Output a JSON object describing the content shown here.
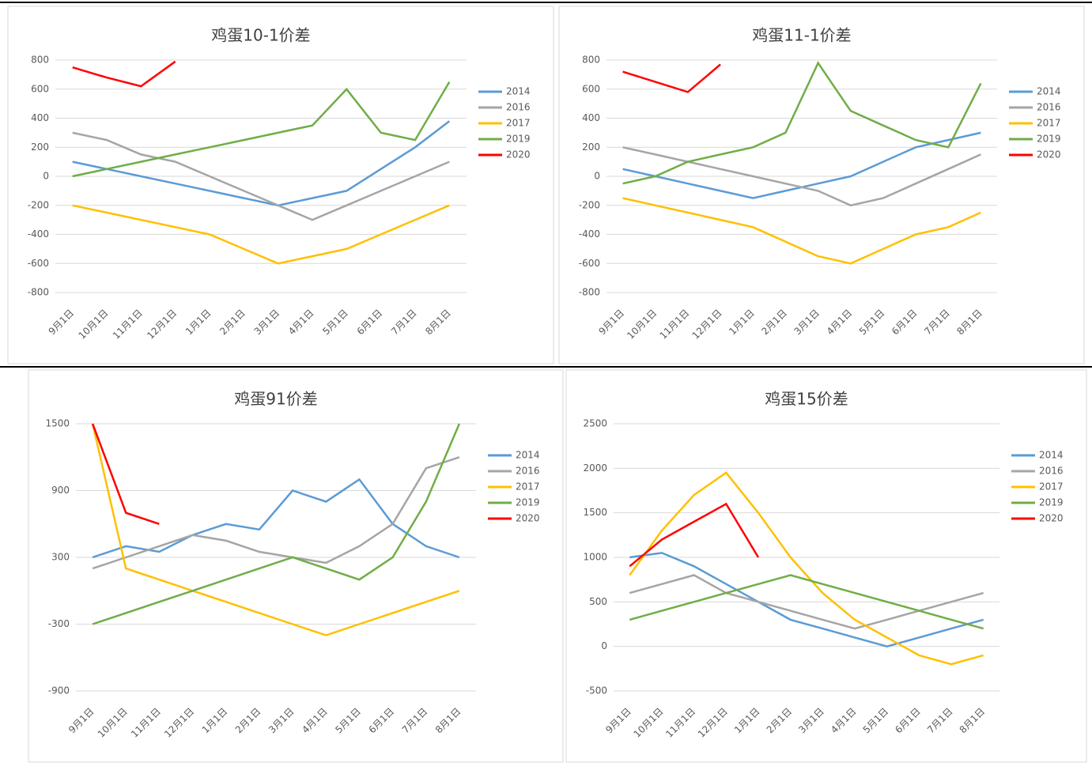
{
  "chart_data": [
    {
      "type": "line",
      "title": "鸡蛋10-1价差",
      "categories": [
        "9月1日",
        "10月1日",
        "11月1日",
        "12月1日",
        "1月1日",
        "2月1日",
        "3月1日",
        "4月1日",
        "5月1日",
        "6月1日",
        "7月1日",
        "8月1日"
      ],
      "ylim": [
        -800,
        800
      ],
      "yticks": [
        -800,
        -600,
        -400,
        -200,
        0,
        200,
        400,
        600,
        800
      ],
      "grid": true,
      "series": [
        {
          "name": "2014",
          "color": "#5b9bd5",
          "values": [
            100,
            50,
            0,
            -50,
            -100,
            -150,
            -200,
            -150,
            -100,
            50,
            200,
            380
          ]
        },
        {
          "name": "2016",
          "color": "#a5a5a5",
          "values": [
            300,
            250,
            150,
            100,
            0,
            -100,
            -200,
            -300,
            -200,
            -100,
            0,
            100
          ]
        },
        {
          "name": "2017",
          "color": "#ffc000",
          "values": [
            -200,
            -250,
            -300,
            -350,
            -400,
            -500,
            -600,
            -550,
            -500,
            -400,
            -300,
            -200
          ]
        },
        {
          "name": "2019",
          "color": "#70ad47",
          "values": [
            0,
            50,
            100,
            150,
            200,
            250,
            300,
            350,
            600,
            300,
            250,
            650
          ]
        },
        {
          "name": "2020",
          "color": "#ff0000",
          "values": [
            750,
            680,
            620,
            790,
            null,
            null,
            null,
            null,
            null,
            null,
            null,
            null
          ]
        }
      ]
    },
    {
      "type": "line",
      "title": "鸡蛋11-1价差",
      "categories": [
        "9月1日",
        "10月1日",
        "11月1日",
        "12月1日",
        "1月1日",
        "2月1日",
        "3月1日",
        "4月1日",
        "5月1日",
        "6月1日",
        "7月1日",
        "8月1日"
      ],
      "ylim": [
        -800,
        800
      ],
      "yticks": [
        -800,
        -600,
        -400,
        -200,
        0,
        200,
        400,
        600,
        800
      ],
      "grid": true,
      "series": [
        {
          "name": "2014",
          "color": "#5b9bd5",
          "values": [
            50,
            0,
            -50,
            -100,
            -150,
            -100,
            -50,
            0,
            100,
            200,
            250,
            300
          ]
        },
        {
          "name": "2016",
          "color": "#a5a5a5",
          "values": [
            200,
            150,
            100,
            50,
            0,
            -50,
            -100,
            -200,
            -150,
            -50,
            50,
            150
          ]
        },
        {
          "name": "2017",
          "color": "#ffc000",
          "values": [
            -150,
            -200,
            -250,
            -300,
            -350,
            -450,
            -550,
            -600,
            -500,
            -400,
            -350,
            -250
          ]
        },
        {
          "name": "2019",
          "color": "#70ad47",
          "values": [
            -50,
            0,
            100,
            150,
            200,
            300,
            780,
            450,
            350,
            250,
            200,
            640
          ]
        },
        {
          "name": "2020",
          "color": "#ff0000",
          "values": [
            720,
            650,
            580,
            770,
            null,
            null,
            null,
            null,
            null,
            null,
            null,
            null
          ]
        }
      ]
    },
    {
      "type": "line",
      "title": "鸡蛋91价差",
      "categories": [
        "9月1日",
        "10月1日",
        "11月1日",
        "12月1日",
        "1月1日",
        "2月1日",
        "3月1日",
        "4月1日",
        "5月1日",
        "6月1日",
        "7月1日",
        "8月1日"
      ],
      "ylim": [
        -900,
        1500
      ],
      "yticks": [
        -900,
        -300,
        300,
        900,
        1500
      ],
      "grid": true,
      "series": [
        {
          "name": "2014",
          "color": "#5b9bd5",
          "values": [
            300,
            400,
            350,
            500,
            600,
            550,
            900,
            800,
            1000,
            600,
            400,
            300
          ]
        },
        {
          "name": "2016",
          "color": "#a5a5a5",
          "values": [
            200,
            300,
            400,
            500,
            450,
            350,
            300,
            250,
            400,
            600,
            1100,
            1200
          ]
        },
        {
          "name": "2017",
          "color": "#ffc000",
          "values": [
            1500,
            200,
            100,
            0,
            -100,
            -200,
            -300,
            -400,
            -300,
            -200,
            -100,
            0
          ]
        },
        {
          "name": "2019",
          "color": "#70ad47",
          "values": [
            -300,
            -200,
            -100,
            0,
            100,
            200,
            300,
            200,
            100,
            300,
            800,
            1500
          ]
        },
        {
          "name": "2020",
          "color": "#ff0000",
          "values": [
            1500,
            700,
            600,
            null,
            null,
            null,
            null,
            null,
            null,
            null,
            null,
            null
          ]
        }
      ]
    },
    {
      "type": "line",
      "title": "鸡蛋15价差",
      "categories": [
        "9月1日",
        "10月1日",
        "11月1日",
        "12月1日",
        "1月1日",
        "2月1日",
        "3月1日",
        "4月1日",
        "5月1日",
        "6月1日",
        "7月1日",
        "8月1日"
      ],
      "ylim": [
        -500,
        2500
      ],
      "yticks": [
        -500,
        0,
        500,
        1000,
        1500,
        2000,
        2500
      ],
      "grid": true,
      "series": [
        {
          "name": "2014",
          "color": "#5b9bd5",
          "values": [
            1000,
            1050,
            900,
            700,
            500,
            300,
            200,
            100,
            0,
            100,
            200,
            300
          ]
        },
        {
          "name": "2016",
          "color": "#a5a5a5",
          "values": [
            600,
            700,
            800,
            600,
            500,
            400,
            300,
            200,
            300,
            400,
            500,
            600
          ]
        },
        {
          "name": "2017",
          "color": "#ffc000",
          "values": [
            800,
            1300,
            1700,
            1950,
            1500,
            1000,
            600,
            300,
            100,
            -100,
            -200,
            -100
          ]
        },
        {
          "name": "2019",
          "color": "#70ad47",
          "values": [
            300,
            400,
            500,
            600,
            700,
            800,
            700,
            600,
            500,
            400,
            300,
            200
          ]
        },
        {
          "name": "2020",
          "color": "#ff0000",
          "values": [
            900,
            1200,
            1400,
            1600,
            1000,
            null,
            null,
            null,
            null,
            null,
            null,
            null
          ]
        }
      ]
    }
  ]
}
